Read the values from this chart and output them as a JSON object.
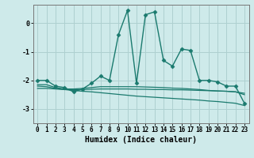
{
  "xlabel": "Humidex (Indice chaleur)",
  "background_color": "#ceeaea",
  "grid_color": "#aed0d0",
  "line_color": "#1a7a6e",
  "xlim": [
    -0.5,
    23.5
  ],
  "ylim": [
    -3.5,
    0.65
  ],
  "yticks": [
    0,
    -1,
    -2,
    -3
  ],
  "xticks": [
    0,
    1,
    2,
    3,
    4,
    5,
    6,
    7,
    8,
    9,
    10,
    11,
    12,
    13,
    14,
    15,
    16,
    17,
    18,
    19,
    20,
    21,
    22,
    23
  ],
  "series": [
    {
      "x": [
        0,
        1,
        2,
        3,
        4,
        5,
        6,
        7,
        8,
        9,
        10,
        11,
        12,
        13,
        14,
        15,
        16,
        17,
        18,
        19,
        20,
        21,
        22,
        23
      ],
      "y": [
        -2.0,
        -2.0,
        -2.2,
        -2.25,
        -2.4,
        -2.3,
        -2.1,
        -1.85,
        -2.0,
        -0.4,
        0.45,
        -2.1,
        0.3,
        0.4,
        -1.3,
        -1.5,
        -0.9,
        -0.95,
        -2.0,
        -2.0,
        -2.05,
        -2.2,
        -2.2,
        -2.8
      ],
      "marker": "D",
      "markersize": 2.5,
      "linewidth": 1.0
    },
    {
      "x": [
        0,
        1,
        2,
        3,
        4,
        5,
        6,
        7,
        8,
        9,
        10,
        11,
        12,
        13,
        14,
        15,
        16,
        17,
        18,
        19,
        20,
        21,
        22,
        23
      ],
      "y": [
        -2.15,
        -2.15,
        -2.25,
        -2.3,
        -2.3,
        -2.28,
        -2.25,
        -2.22,
        -2.22,
        -2.22,
        -2.22,
        -2.22,
        -2.23,
        -2.24,
        -2.25,
        -2.27,
        -2.28,
        -2.3,
        -2.32,
        -2.35,
        -2.37,
        -2.38,
        -2.4,
        -2.45
      ],
      "marker": null,
      "markersize": 0,
      "linewidth": 0.9
    },
    {
      "x": [
        0,
        1,
        2,
        3,
        4,
        5,
        6,
        7,
        8,
        9,
        10,
        11,
        12,
        13,
        14,
        15,
        16,
        17,
        18,
        19,
        20,
        21,
        22,
        23
      ],
      "y": [
        -2.2,
        -2.22,
        -2.28,
        -2.32,
        -2.35,
        -2.38,
        -2.4,
        -2.43,
        -2.46,
        -2.49,
        -2.52,
        -2.55,
        -2.57,
        -2.59,
        -2.61,
        -2.63,
        -2.65,
        -2.67,
        -2.69,
        -2.72,
        -2.74,
        -2.77,
        -2.8,
        -2.88
      ],
      "marker": null,
      "markersize": 0,
      "linewidth": 0.9
    },
    {
      "x": [
        0,
        1,
        2,
        3,
        4,
        5,
        6,
        7,
        8,
        9,
        10,
        11,
        12,
        13,
        14,
        15,
        16,
        17,
        18,
        19,
        20,
        21,
        22,
        23
      ],
      "y": [
        -2.28,
        -2.28,
        -2.3,
        -2.32,
        -2.33,
        -2.32,
        -2.31,
        -2.3,
        -2.3,
        -2.3,
        -2.3,
        -2.31,
        -2.31,
        -2.32,
        -2.32,
        -2.33,
        -2.33,
        -2.34,
        -2.35,
        -2.36,
        -2.37,
        -2.38,
        -2.4,
        -2.5
      ],
      "marker": null,
      "markersize": 0,
      "linewidth": 0.9
    }
  ]
}
